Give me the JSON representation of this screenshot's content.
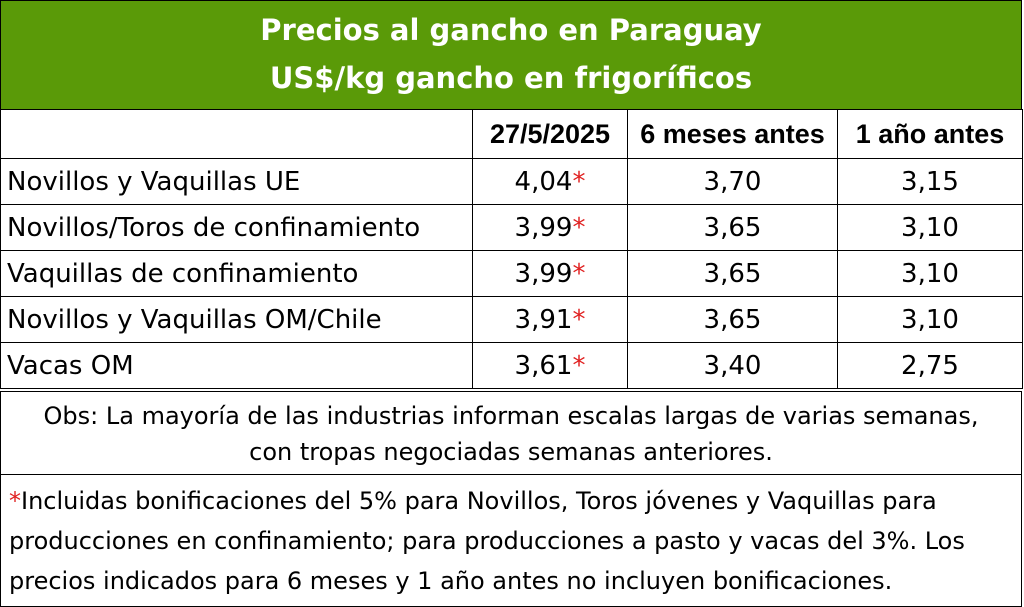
{
  "title": {
    "line1": "Precios al gancho en Paraguay",
    "line2": "US$/kg gancho en frigoríficos"
  },
  "colors": {
    "header_bg": "#5a9a08",
    "asterisk": "#e02020"
  },
  "columns": [
    "",
    "27/5/2025",
    "6 meses antes",
    "1 año antes"
  ],
  "rows": [
    {
      "label": "Novillos y Vaquillas UE",
      "current": "4,04",
      "mark": "*",
      "six_months": "3,70",
      "one_year": "3,15"
    },
    {
      "label": "Novillos/Toros de confinamiento",
      "current": "3,99",
      "mark": "*",
      "six_months": "3,65",
      "one_year": "3,10"
    },
    {
      "label": "Vaquillas de confinamiento",
      "current": "3,99",
      "mark": "*",
      "six_months": "3,65",
      "one_year": "3,10"
    },
    {
      "label": "Novillos y Vaquillas OM/Chile",
      "current": "3,91",
      "mark": "*",
      "six_months": "3,65",
      "one_year": "3,10"
    },
    {
      "label": "Vacas OM",
      "current": "3,61",
      "mark": "*",
      "six_months": "3,40",
      "one_year": "2,75"
    }
  ],
  "obs": {
    "line1": "Obs: La mayoría de las industrias informan escalas largas de varias semanas,",
    "line2": "con tropas negociadas semanas anteriores."
  },
  "footnote": {
    "mark": "*",
    "text": "Incluidas bonificaciones del 5% para Novillos, Toros jóvenes y Vaquillas para producciones en confinamiento; para producciones a pasto y vacas del 3%. Los precios indicados para 6 meses y 1 año antes no incluyen bonificaciones."
  }
}
